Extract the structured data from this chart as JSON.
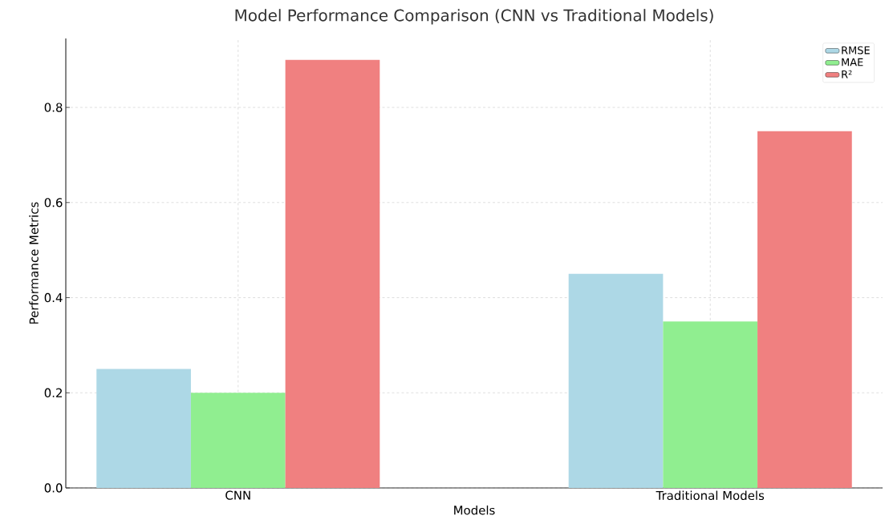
{
  "chart_data": {
    "type": "bar",
    "title": "Model Performance Comparison (CNN vs Traditional Models)",
    "xlabel": "Models",
    "ylabel": "Performance Metrics",
    "categories": [
      "CNN",
      "Traditional Models"
    ],
    "series": [
      {
        "name": "RMSE",
        "color": "#add8e6",
        "values": [
          0.25,
          0.45
        ]
      },
      {
        "name": "MAE",
        "color": "#90ee90",
        "values": [
          0.2,
          0.35
        ]
      },
      {
        "name": "R²",
        "color": "#f08080",
        "values": [
          0.9,
          0.75
        ]
      }
    ],
    "ylim": [
      0,
      0.945
    ],
    "yticks": [
      {
        "value": 0,
        "label": "0.0"
      },
      0.2,
      0.4,
      0.6,
      0.8
    ],
    "grid": true,
    "legend": "top right"
  }
}
